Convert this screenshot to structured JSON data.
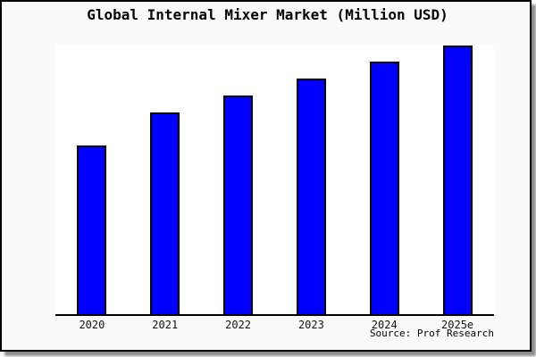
{
  "window": {
    "background_color": "#fafafa",
    "plot_background_color": "#ffffff",
    "border_color": "#000000"
  },
  "chart_data": {
    "type": "bar",
    "title": "Global Internal Mixer Market (Million USD)",
    "categories": [
      "2020",
      "2021",
      "2022",
      "2023",
      "2024",
      "2025e"
    ],
    "values": [
      62.8,
      75.1,
      81.4,
      87.7,
      93.9,
      100.0
    ],
    "value_note": "y-axis has no tick labels; values are relative bar heights scaled to max = 100",
    "xlabel": "",
    "ylabel": "",
    "ylim": [
      0,
      100
    ],
    "grid": false,
    "legend": false,
    "bar_color": "#0000ff",
    "bar_border_color": "#000000",
    "axis_line_color": "#000000"
  },
  "source": {
    "text": "Source: Prof Research"
  }
}
